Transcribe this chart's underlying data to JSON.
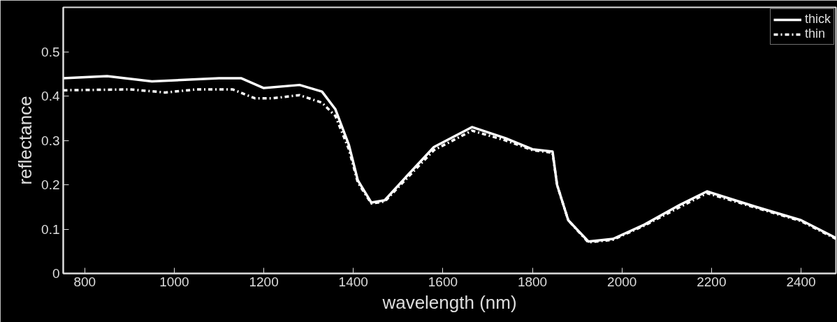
{
  "chart_data": {
    "type": "line",
    "xlabel": "wavelength (nm)",
    "ylabel": "reflectance",
    "xlim": [
      752,
      2478
    ],
    "ylim": [
      0,
      0.6
    ],
    "xticks": [
      800,
      1000,
      1200,
      1400,
      1600,
      1800,
      2000,
      2200,
      2400
    ],
    "yticks": [
      0,
      0.1,
      0.2,
      0.3,
      0.4,
      0.5
    ],
    "grid": false,
    "legend": "top right",
    "series": [
      {
        "name": "thick",
        "color": "#ffffff",
        "line_style": "solid",
        "x": [
          752,
          850,
          950,
          1100,
          1150,
          1200,
          1280,
          1330,
          1360,
          1390,
          1410,
          1440,
          1470,
          1520,
          1580,
          1665,
          1740,
          1800,
          1845,
          1855,
          1880,
          1925,
          1980,
          2050,
          2130,
          2190,
          2300,
          2400,
          2478
        ],
        "values": [
          0.44,
          0.445,
          0.433,
          0.44,
          0.44,
          0.418,
          0.425,
          0.41,
          0.37,
          0.29,
          0.21,
          0.16,
          0.165,
          0.22,
          0.285,
          0.33,
          0.305,
          0.28,
          0.275,
          0.2,
          0.12,
          0.072,
          0.078,
          0.11,
          0.155,
          0.185,
          0.15,
          0.12,
          0.08
        ]
      },
      {
        "name": "thin",
        "color": "#ffffff",
        "line_style": "dashdot",
        "x": [
          752,
          900,
          980,
          1050,
          1130,
          1180,
          1220,
          1280,
          1330,
          1360,
          1390,
          1410,
          1440,
          1470,
          1520,
          1580,
          1665,
          1740,
          1800,
          1845,
          1855,
          1880,
          1925,
          1980,
          2050,
          2130,
          2190,
          2300,
          2400,
          2478
        ],
        "values": [
          0.413,
          0.415,
          0.408,
          0.415,
          0.415,
          0.395,
          0.395,
          0.402,
          0.385,
          0.355,
          0.28,
          0.205,
          0.158,
          0.162,
          0.215,
          0.278,
          0.322,
          0.3,
          0.278,
          0.272,
          0.2,
          0.12,
          0.07,
          0.076,
          0.108,
          0.15,
          0.181,
          0.148,
          0.118,
          0.078
        ]
      }
    ]
  }
}
